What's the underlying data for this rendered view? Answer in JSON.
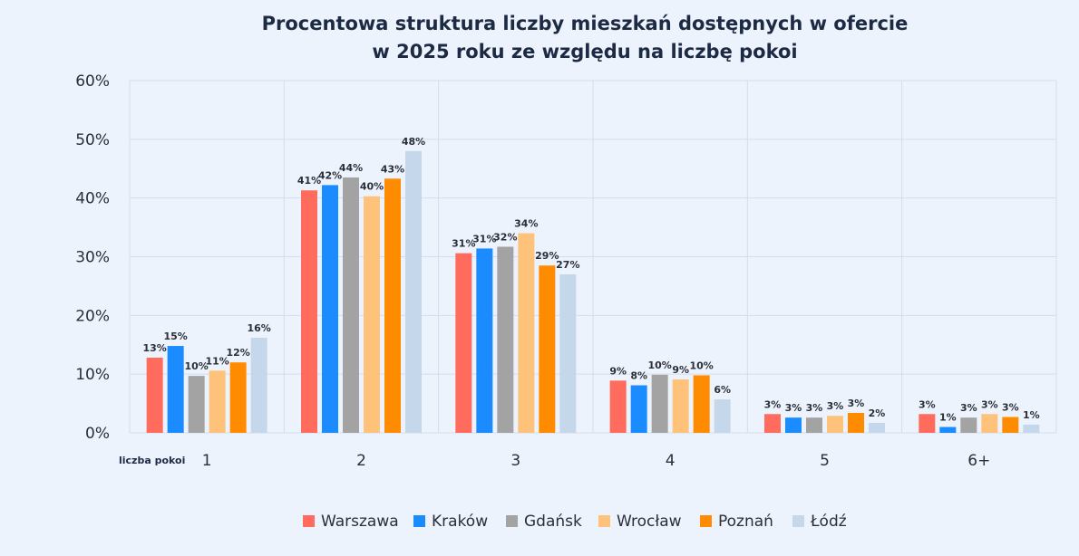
{
  "chart_data": {
    "type": "bar",
    "title": [
      "Procentowa struktura liczby mieszkań dostępnych w ofercie",
      "w 2025 roku ze względu na liczbę pokoi"
    ],
    "xlabel": "liczba pokoi",
    "ylabel": "",
    "categories": [
      "1",
      "2",
      "3",
      "4",
      "5",
      "6+"
    ],
    "ylim": [
      0,
      60
    ],
    "yticks": [
      "0%",
      "10%",
      "20%",
      "30%",
      "40%",
      "50%",
      "60%"
    ],
    "grid": true,
    "legend_position": "bottom",
    "series": [
      {
        "name": "Warszawa",
        "color": "#ff6b5c",
        "values": [
          12.8,
          41.3,
          30.6,
          8.9,
          3.2,
          3.2
        ],
        "labels": [
          "13%",
          "41%",
          "31%",
          "9%",
          "3%",
          "3%"
        ]
      },
      {
        "name": "Kraków",
        "color": "#1a8cff",
        "values": [
          14.8,
          42.2,
          31.4,
          8.1,
          2.6,
          1.0
        ],
        "labels": [
          "15%",
          "42%",
          "31%",
          "8%",
          "3%",
          "1%"
        ]
      },
      {
        "name": "Gdańsk",
        "color": "#a3a3a3",
        "values": [
          9.7,
          43.5,
          31.7,
          9.9,
          2.6,
          2.6
        ],
        "labels": [
          "10%",
          "44%",
          "32%",
          "10%",
          "3%",
          "3%"
        ]
      },
      {
        "name": "Wrocław",
        "color": "#ffc27a",
        "values": [
          10.6,
          40.3,
          34.0,
          9.1,
          2.9,
          3.2
        ],
        "labels": [
          "11%",
          "40%",
          "34%",
          "9%",
          "3%",
          "3%"
        ]
      },
      {
        "name": "Poznań",
        "color": "#ff8c00",
        "values": [
          12.0,
          43.3,
          28.5,
          9.8,
          3.4,
          2.7
        ],
        "labels": [
          "12%",
          "43%",
          "29%",
          "10%",
          "3%",
          "3%"
        ]
      },
      {
        "name": "Łódź",
        "color": "#c4d7eb",
        "values": [
          16.2,
          48.0,
          27.0,
          5.7,
          1.7,
          1.4
        ],
        "labels": [
          "16%",
          "48%",
          "27%",
          "6%",
          "2%",
          "1%"
        ]
      }
    ]
  }
}
